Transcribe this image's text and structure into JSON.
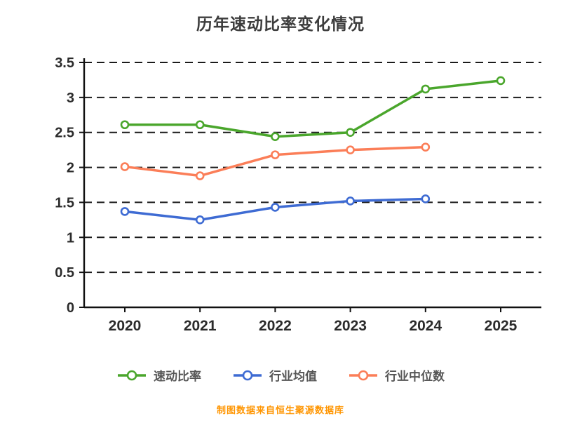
{
  "title": "历年速动比率变化情况",
  "footer": "制图数据来自恒生聚源数据库",
  "chart_data": {
    "type": "line",
    "title": "历年速动比率变化情况",
    "xlabel": "",
    "ylabel": "",
    "x": [
      "2020",
      "2021",
      "2022",
      "2023",
      "2024",
      "2025"
    ],
    "series": [
      {
        "name": "速动比率",
        "color": "#4aa62c",
        "values": [
          2.61,
          2.61,
          2.44,
          2.5,
          3.12,
          3.24
        ]
      },
      {
        "name": "行业均值",
        "color": "#3e6bd3",
        "values": [
          1.37,
          1.25,
          1.43,
          1.52,
          1.55,
          null
        ]
      },
      {
        "name": "行业中位数",
        "color": "#fb7e58",
        "values": [
          2.01,
          1.88,
          2.18,
          2.25,
          2.29,
          null
        ]
      }
    ],
    "ylim": [
      0,
      3.5
    ],
    "ytick_step": 0.5,
    "yticks": [
      0,
      0.5,
      1,
      1.5,
      2,
      2.5,
      3,
      3.5
    ],
    "grid": "dashed-horizontal",
    "legend_position": "bottom"
  }
}
